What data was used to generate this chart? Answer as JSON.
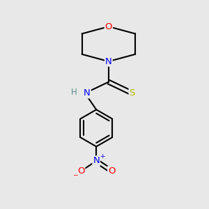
{
  "bg_color": "#e8e8e8",
  "atom_colors": {
    "C": "#000000",
    "N": "#0000ff",
    "O": "#ff0000",
    "S": "#b8b800",
    "H": "#5a8a8a"
  },
  "bond_color": "#000000",
  "bond_width": 1.5,
  "font_size_atom": 8.5,
  "figsize": [
    3.0,
    3.0
  ],
  "dpi": 100,
  "xlim": [
    0,
    10
  ],
  "ylim": [
    0,
    10
  ]
}
